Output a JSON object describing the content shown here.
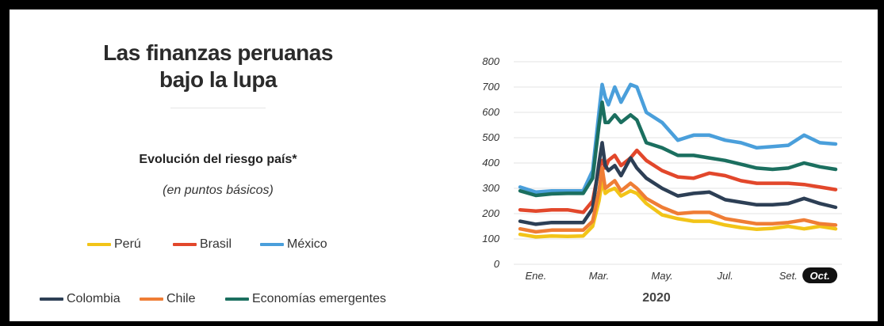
{
  "title_line1": "Las finanzas peruanas",
  "title_line2": "bajo la lupa",
  "subtitle": "Evolución del riesgo país*",
  "units": "(en puntos básicos)",
  "colors": {
    "peru": "#f2c418",
    "brasil": "#e2472b",
    "mexico": "#4a9fdb",
    "colombia": "#2d3f55",
    "chile": "#ef7d35",
    "emergentes": "#1b6f5f"
  },
  "chart_data": {
    "type": "line",
    "year_label": "2020",
    "x_tick_labels": [
      "Ene.",
      "Mar.",
      "May.",
      "Jul.",
      "Set.",
      "Oct."
    ],
    "x_tick_month": [
      1,
      3,
      5,
      7,
      9,
      10
    ],
    "y_tick_labels": [
      "0",
      "100",
      "200",
      "300",
      "400",
      "500",
      "600",
      "700",
      "800"
    ],
    "ylim": [
      0,
      800
    ],
    "xlim": [
      0.3,
      10.7
    ],
    "grid": "horizontal",
    "x": [
      0.5,
      1.0,
      1.5,
      2.0,
      2.5,
      2.8,
      3.0,
      3.1,
      3.2,
      3.3,
      3.5,
      3.7,
      4.0,
      4.2,
      4.5,
      5.0,
      5.5,
      6.0,
      6.5,
      7.0,
      7.5,
      8.0,
      8.5,
      9.0,
      9.5,
      10.0,
      10.5
    ],
    "series": [
      {
        "name": "Perú",
        "color_key": "peru",
        "values": [
          118,
          108,
          112,
          110,
          112,
          150,
          250,
          330,
          280,
          290,
          300,
          270,
          290,
          280,
          240,
          195,
          180,
          170,
          170,
          155,
          145,
          138,
          142,
          150,
          140,
          150,
          140
        ]
      },
      {
        "name": "Brasil",
        "color_key": "brasil",
        "values": [
          215,
          210,
          215,
          215,
          205,
          250,
          380,
          410,
          380,
          410,
          430,
          390,
          420,
          450,
          410,
          370,
          345,
          340,
          360,
          350,
          330,
          320,
          320,
          320,
          315,
          305,
          295
        ]
      },
      {
        "name": "México",
        "color_key": "mexico",
        "values": [
          305,
          285,
          290,
          290,
          290,
          370,
          600,
          710,
          660,
          630,
          700,
          640,
          710,
          700,
          600,
          560,
          490,
          510,
          510,
          490,
          480,
          460,
          465,
          470,
          510,
          480,
          475
        ]
      },
      {
        "name": "Colombia",
        "color_key": "colombia",
        "values": [
          170,
          158,
          165,
          165,
          165,
          220,
          400,
          480,
          390,
          370,
          390,
          350,
          420,
          380,
          340,
          300,
          270,
          280,
          285,
          255,
          245,
          235,
          235,
          240,
          260,
          240,
          225
        ]
      },
      {
        "name": "Chile",
        "color_key": "chile",
        "values": [
          140,
          128,
          135,
          135,
          135,
          170,
          290,
          380,
          300,
          310,
          330,
          290,
          320,
          300,
          260,
          225,
          200,
          205,
          205,
          180,
          170,
          160,
          160,
          165,
          175,
          160,
          155
        ]
      },
      {
        "name": "Economías emergentes",
        "color_key": "emergentes",
        "values": [
          290,
          272,
          278,
          280,
          280,
          340,
          550,
          640,
          560,
          560,
          590,
          560,
          590,
          570,
          480,
          460,
          430,
          430,
          420,
          410,
          395,
          380,
          375,
          380,
          400,
          385,
          375
        ]
      }
    ]
  },
  "legend": [
    {
      "label": "Perú",
      "color_key": "peru"
    },
    {
      "label": "Brasil",
      "color_key": "brasil"
    },
    {
      "label": "México",
      "color_key": "mexico"
    },
    {
      "label": "Colombia",
      "color_key": "colombia"
    },
    {
      "label": "Chile",
      "color_key": "chile"
    },
    {
      "label": "Economías emergentes",
      "color_key": "emergentes"
    }
  ]
}
